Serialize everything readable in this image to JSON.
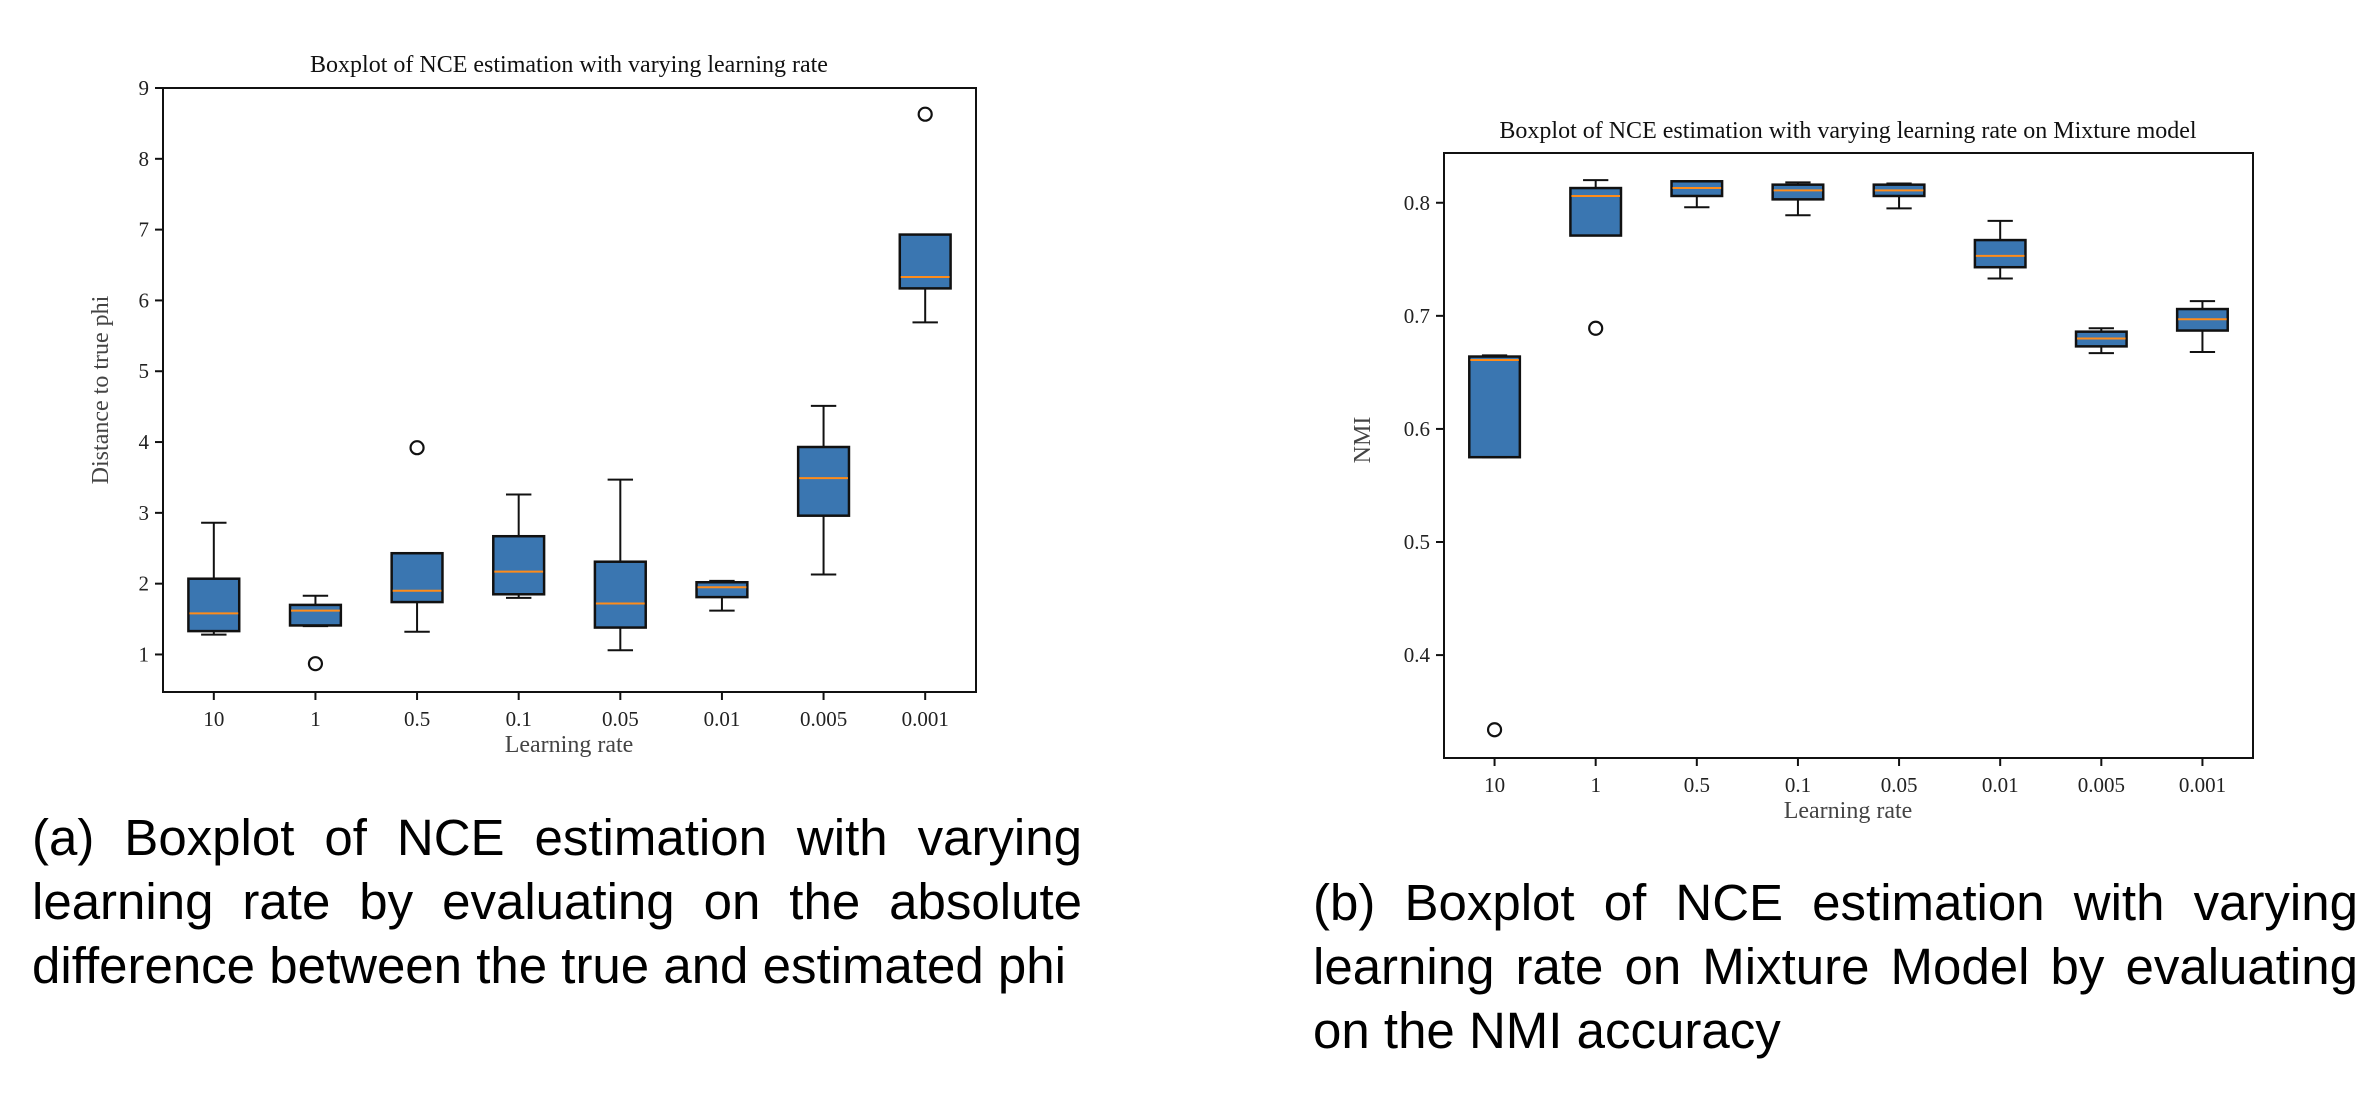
{
  "chart_data": [
    {
      "type": "boxplot",
      "title": "Boxplot of NCE estimation with varying learning rate",
      "xlabel": "Learning rate",
      "ylabel": "Distance to true phi",
      "categories": [
        "10",
        "1",
        "0.5",
        "0.1",
        "0.05",
        "0.01",
        "0.005",
        "0.001"
      ],
      "ylim": [
        0.47,
        9.0
      ],
      "yticks": [
        1,
        2,
        3,
        4,
        5,
        6,
        7,
        8,
        9
      ],
      "ytick_labels": [
        "1",
        "2",
        "3",
        "4",
        "5",
        "6",
        "7",
        "8",
        "9"
      ],
      "grid": false,
      "box_color": "#3a76b1",
      "median_color": "#ff8c1a",
      "boxes": [
        {
          "label": "10",
          "whislo": 1.28,
          "q1": 1.33,
          "med": 1.58,
          "q3": 2.07,
          "whishi": 2.86,
          "fliers": []
        },
        {
          "label": "1",
          "whislo": 1.4,
          "q1": 1.41,
          "med": 1.62,
          "q3": 1.7,
          "whishi": 1.83,
          "fliers": [
            0.87
          ]
        },
        {
          "label": "0.5",
          "whislo": 1.32,
          "q1": 1.74,
          "med": 1.9,
          "q3": 2.43,
          "whishi": 2.43,
          "fliers": [
            3.92
          ]
        },
        {
          "label": "0.1",
          "whislo": 1.8,
          "q1": 1.85,
          "med": 2.17,
          "q3": 2.67,
          "whishi": 3.26,
          "fliers": []
        },
        {
          "label": "0.05",
          "whislo": 1.06,
          "q1": 1.38,
          "med": 1.72,
          "q3": 2.31,
          "whishi": 3.47,
          "fliers": []
        },
        {
          "label": "0.01",
          "whislo": 1.62,
          "q1": 1.81,
          "med": 1.95,
          "q3": 2.02,
          "whishi": 2.04,
          "fliers": []
        },
        {
          "label": "0.005",
          "whislo": 2.13,
          "q1": 2.96,
          "med": 3.49,
          "q3": 3.93,
          "whishi": 4.51,
          "fliers": []
        },
        {
          "label": "0.001",
          "whislo": 5.69,
          "q1": 6.17,
          "med": 6.33,
          "q3": 6.93,
          "whishi": 6.93,
          "fliers": [
            8.63
          ]
        }
      ]
    },
    {
      "type": "boxplot",
      "title": "Boxplot of NCE estimation with varying learning rate on Mixture model",
      "xlabel": "Learning rate",
      "ylabel": "NMI",
      "categories": [
        "10",
        "1",
        "0.5",
        "0.1",
        "0.05",
        "0.01",
        "0.005",
        "0.001"
      ],
      "ylim": [
        0.309,
        0.844
      ],
      "yticks": [
        0.4,
        0.5,
        0.6,
        0.7,
        0.8
      ],
      "ytick_labels": [
        "0.4",
        "0.5",
        "0.6",
        "0.7",
        "0.8"
      ],
      "grid": false,
      "box_color": "#3a76b1",
      "median_color": "#ff8c1a",
      "boxes": [
        {
          "label": "10",
          "whislo": 0.575,
          "q1": 0.575,
          "med": 0.661,
          "q3": 0.664,
          "whishi": 0.665,
          "fliers": [
            0.334
          ]
        },
        {
          "label": "1",
          "whislo": 0.771,
          "q1": 0.771,
          "med": 0.806,
          "q3": 0.813,
          "whishi": 0.82,
          "fliers": [
            0.689
          ]
        },
        {
          "label": "0.5",
          "whislo": 0.796,
          "q1": 0.806,
          "med": 0.813,
          "q3": 0.819,
          "whishi": 0.819,
          "fliers": []
        },
        {
          "label": "0.1",
          "whislo": 0.789,
          "q1": 0.803,
          "med": 0.811,
          "q3": 0.816,
          "whishi": 0.818,
          "fliers": []
        },
        {
          "label": "0.05",
          "whislo": 0.795,
          "q1": 0.806,
          "med": 0.811,
          "q3": 0.816,
          "whishi": 0.817,
          "fliers": []
        },
        {
          "label": "0.01",
          "whislo": 0.733,
          "q1": 0.743,
          "med": 0.753,
          "q3": 0.767,
          "whishi": 0.784,
          "fliers": []
        },
        {
          "label": "0.005",
          "whislo": 0.667,
          "q1": 0.673,
          "med": 0.68,
          "q3": 0.686,
          "whishi": 0.689,
          "fliers": []
        },
        {
          "label": "0.001",
          "whislo": 0.668,
          "q1": 0.687,
          "med": 0.697,
          "q3": 0.706,
          "whishi": 0.713,
          "fliers": []
        }
      ]
    }
  ],
  "captions": {
    "a": "(a) Boxplot of NCE estimation with varying learning rate by evaluating on the absolute difference between the true and estimated phi",
    "b": "(b) Boxplot of NCE estimation with varying learning rate on Mixture Model by evaluating on the NMI accuracy"
  }
}
